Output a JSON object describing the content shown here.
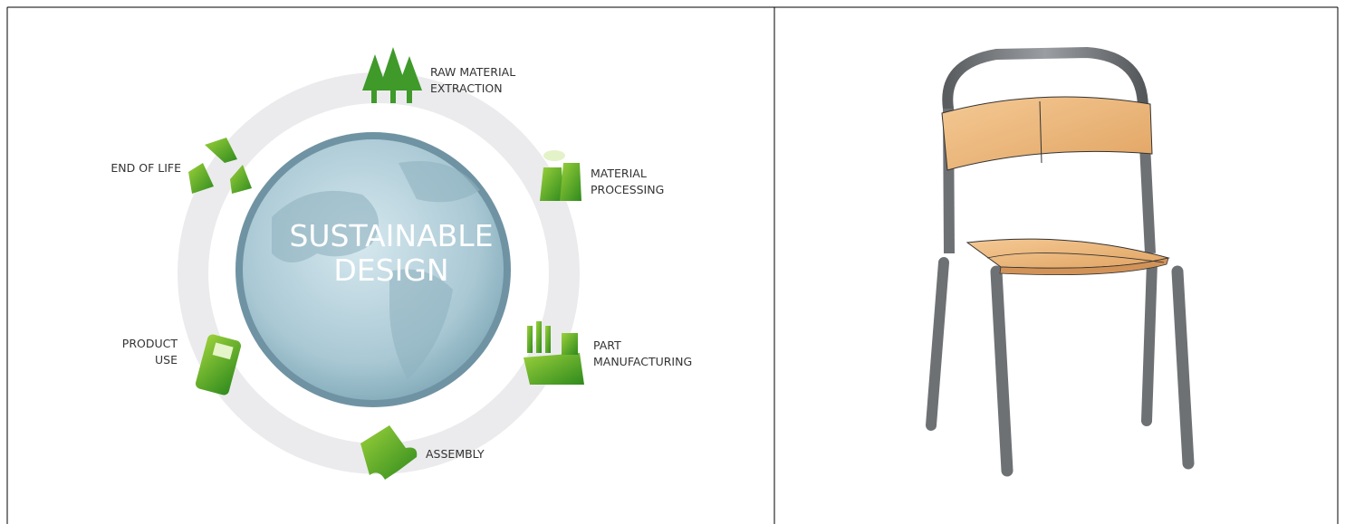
{
  "diagram": {
    "center": {
      "lines": [
        "SUSTAINABLE",
        "DESIGN"
      ]
    },
    "stages": [
      {
        "lines": [
          "RAW MATERIAL",
          "EXTRACTION"
        ]
      },
      {
        "lines": [
          "MATERIAL",
          "PROCESSING"
        ]
      },
      {
        "lines": [
          "PART",
          "MANUFACTURING"
        ]
      },
      {
        "lines": [
          "ASSEMBLY"
        ]
      },
      {
        "lines": [
          "PRODUCT",
          "USE"
        ]
      },
      {
        "lines": [
          "END OF LIFE"
        ]
      }
    ]
  }
}
